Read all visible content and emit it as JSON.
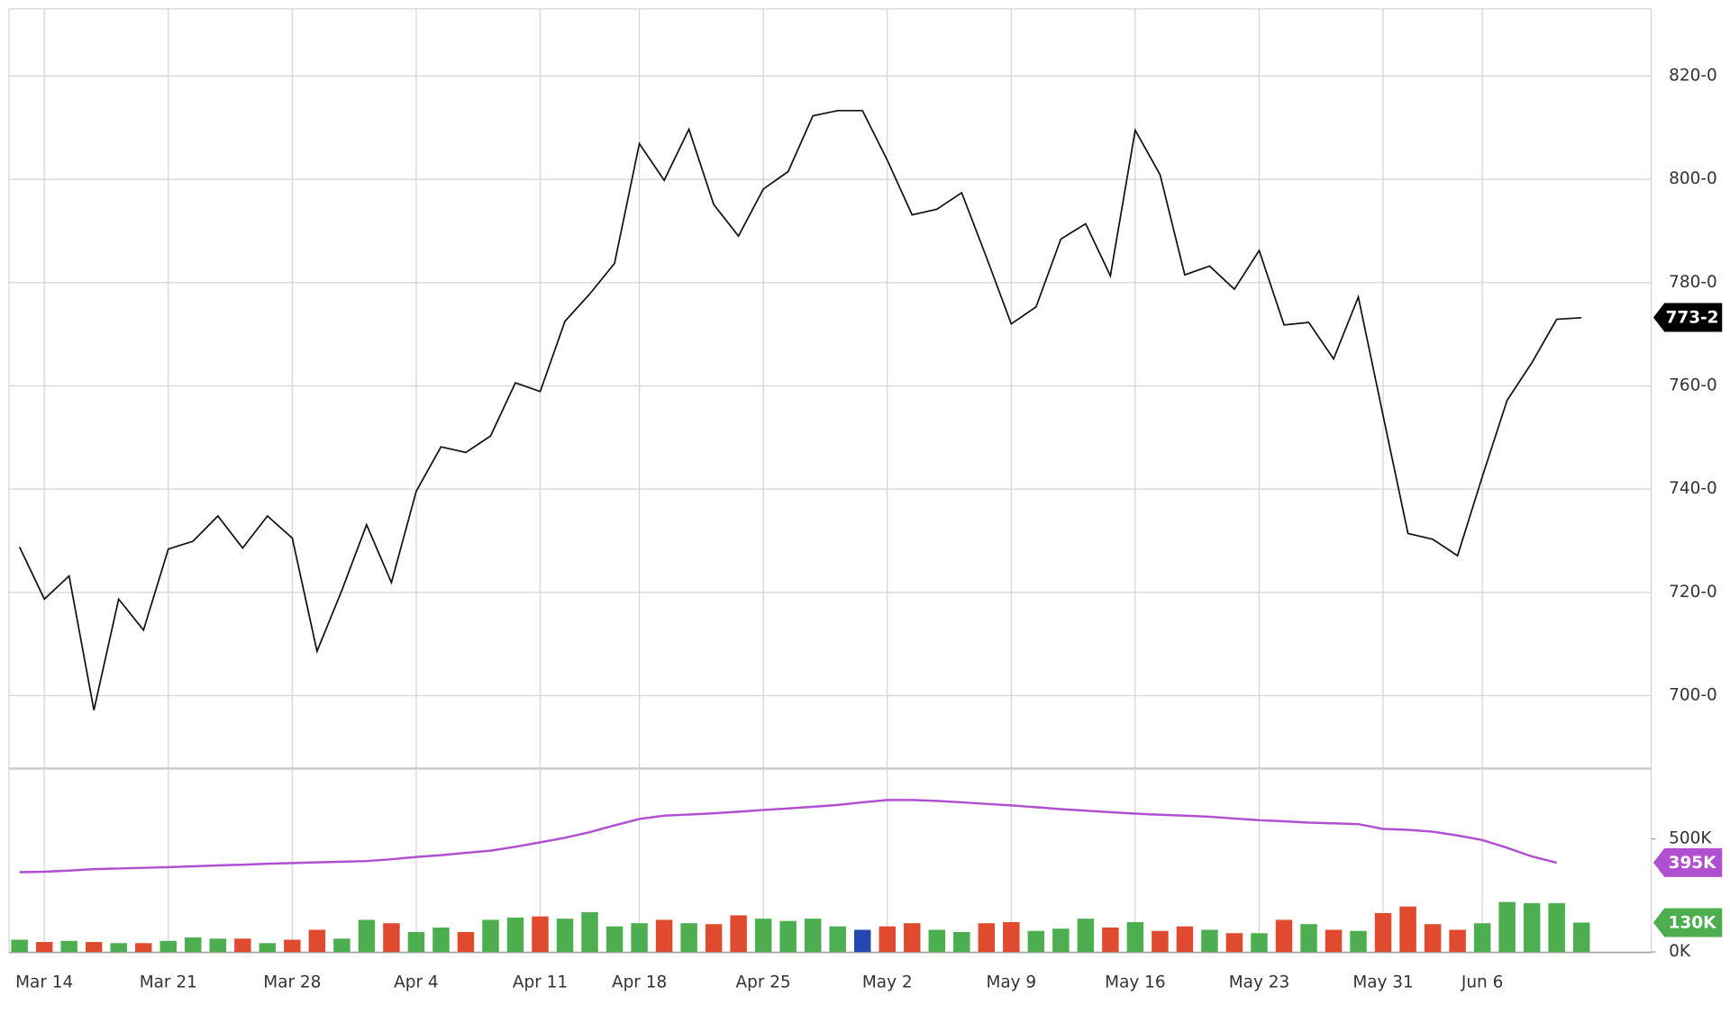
{
  "chart_data": [
    {
      "type": "line",
      "color": "#111111",
      "categories": [
        null,
        "Mar 14",
        null,
        null,
        null,
        null,
        "Mar 21",
        null,
        null,
        null,
        null,
        "Mar 28",
        null,
        null,
        null,
        null,
        "Apr 4",
        null,
        null,
        null,
        null,
        "Apr 11",
        null,
        null,
        null,
        "Apr 18",
        null,
        null,
        null,
        null,
        "Apr 25",
        null,
        null,
        null,
        null,
        "May 2",
        null,
        null,
        null,
        null,
        "May 9",
        null,
        null,
        null,
        null,
        "May 16",
        null,
        null,
        null,
        null,
        "May 23",
        null,
        null,
        null,
        null,
        "May 31",
        null,
        null,
        null,
        "Jun 6",
        null,
        null,
        null,
        null
      ],
      "values": [
        728.8,
        718.7,
        723.2,
        697.2,
        718.7,
        712.7,
        728.4,
        729.9,
        734.8,
        728.6,
        734.8,
        730.5,
        708.6,
        720.4,
        733.1,
        721.9,
        739.6,
        748.2,
        747.1,
        750.3,
        760.6,
        758.9,
        772.5,
        777.8,
        783.7,
        806.9,
        799.8,
        809.7,
        795.1,
        789.0,
        798.1,
        801.5,
        812.3,
        813.3,
        813.3,
        803.7,
        793.1,
        794.2,
        797.4,
        784.9,
        772.0,
        775.3,
        788.4,
        791.4,
        781.3,
        809.5,
        800.9,
        781.5,
        783.2,
        778.7,
        786.2,
        771.8,
        772.3,
        765.2,
        777.2,
        754.2,
        731.4,
        730.3,
        727.1,
        742.4,
        757.2,
        764.5,
        772.9,
        773.2
      ],
      "ylim": [
        686,
        833
      ],
      "yticks": [
        {
          "value": 700,
          "label": "700-0"
        },
        {
          "value": 720,
          "label": "720-0"
        },
        {
          "value": 740,
          "label": "740-0"
        },
        {
          "value": 760,
          "label": "760-0"
        },
        {
          "value": 780,
          "label": "780-0"
        },
        {
          "value": 800,
          "label": "800-0"
        },
        {
          "value": 820,
          "label": "820-0"
        }
      ],
      "grid": true,
      "last_tag": {
        "value": 773.25,
        "label": "773-2",
        "color": "#000000"
      }
    },
    {
      "type": "bar",
      "values": [
        54,
        44,
        49,
        44,
        39,
        39,
        49,
        64,
        59,
        59,
        39,
        54,
        98,
        59,
        142,
        127,
        88,
        108,
        88,
        142,
        152,
        157,
        147,
        176,
        113,
        127,
        142,
        127,
        123,
        162,
        147,
        137,
        147,
        113,
        98,
        113,
        127,
        98,
        88,
        127,
        132,
        93,
        103,
        147,
        108,
        132,
        93,
        113,
        98,
        83,
        83,
        142,
        123,
        98,
        93,
        172,
        201,
        123,
        98,
        127,
        221,
        216,
        216,
        130
      ],
      "colors": [
        "#4cae4f",
        "#e04a2f",
        "#4cae4f",
        "#e04a2f",
        "#4cae4f",
        "#e04a2f",
        "#4cae4f",
        "#4cae4f",
        "#4cae4f",
        "#e04a2f",
        "#4cae4f",
        "#e04a2f",
        "#e04a2f",
        "#4cae4f",
        "#4cae4f",
        "#e04a2f",
        "#4cae4f",
        "#4cae4f",
        "#e04a2f",
        "#4cae4f",
        "#4cae4f",
        "#e04a2f",
        "#4cae4f",
        "#4cae4f",
        "#4cae4f",
        "#4cae4f",
        "#e04a2f",
        "#4cae4f",
        "#e04a2f",
        "#e04a2f",
        "#4cae4f",
        "#4cae4f",
        "#4cae4f",
        "#4cae4f",
        "#2646b0",
        "#e04a2f",
        "#e04a2f",
        "#4cae4f",
        "#4cae4f",
        "#e04a2f",
        "#e04a2f",
        "#4cae4f",
        "#4cae4f",
        "#4cae4f",
        "#e04a2f",
        "#4cae4f",
        "#e04a2f",
        "#e04a2f",
        "#4cae4f",
        "#e04a2f",
        "#4cae4f",
        "#e04a2f",
        "#4cae4f",
        "#e04a2f",
        "#4cae4f",
        "#e04a2f",
        "#e04a2f",
        "#e04a2f",
        "#e04a2f",
        "#4cae4f",
        "#4cae4f",
        "#4cae4f",
        "#4cae4f",
        "#4cae4f"
      ],
      "average": {
        "type": "line",
        "color": "#b04fd0",
        "values": [
          353,
          355,
          360,
          366,
          369,
          372,
          375,
          379,
          383,
          386,
          390,
          393,
          396,
          399,
          402,
          410,
          420,
          428,
          438,
          448,
          465,
          485,
          505,
          530,
          560,
          588,
          603,
          608,
          613,
          620,
          628,
          635,
          642,
          650,
          662,
          672,
          672,
          668,
          662,
          655,
          648,
          640,
          632,
          625,
          618,
          612,
          607,
          603,
          598,
          590,
          583,
          578,
          572,
          569,
          565,
          544,
          540,
          532,
          515,
          495,
          461,
          422,
          395,
          null
        ]
      },
      "ylim": [
        0,
        800
      ],
      "yticks": [
        {
          "value": 0,
          "label": "0K"
        },
        {
          "value": 500,
          "label": "500K"
        }
      ],
      "average_tag": {
        "value": 395,
        "label": "395K",
        "color": "#b04fd0"
      },
      "value_tag": {
        "value": 130,
        "label": "130K",
        "color": "#4cae4f"
      }
    }
  ]
}
